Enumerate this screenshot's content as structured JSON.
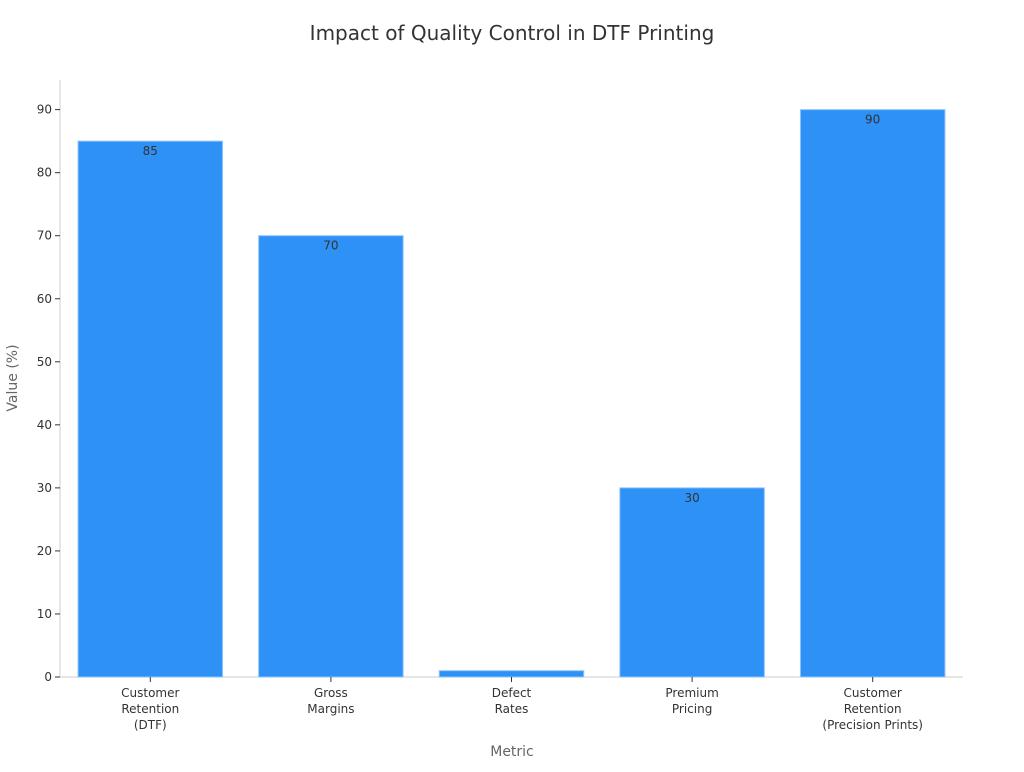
{
  "chart_data": {
    "type": "bar",
    "title": "Impact of Quality Control in DTF Printing",
    "xlabel": "Metric",
    "ylabel": "Value (%)",
    "categories": [
      [
        "Customer",
        "Retention",
        "(DTF)"
      ],
      [
        "Gross",
        "Margins"
      ],
      [
        "Defect",
        "Rates"
      ],
      [
        "Premium",
        "Pricing"
      ],
      [
        "Customer",
        "Retention",
        "(Precision Prints)"
      ]
    ],
    "values": [
      85,
      70,
      1,
      30,
      90
    ],
    "data_labels": [
      "85",
      "70",
      "",
      "30",
      "90"
    ],
    "ylim": [
      0,
      94.7
    ],
    "yticks": [
      0,
      10,
      20,
      30,
      40,
      50,
      60,
      70,
      80,
      90
    ],
    "grid": false,
    "colors": {
      "bar": "#2e91f5",
      "bar_edge": "#8cc4fa",
      "axis": "#cccccc",
      "text": "#333333",
      "label": "#666666"
    }
  }
}
